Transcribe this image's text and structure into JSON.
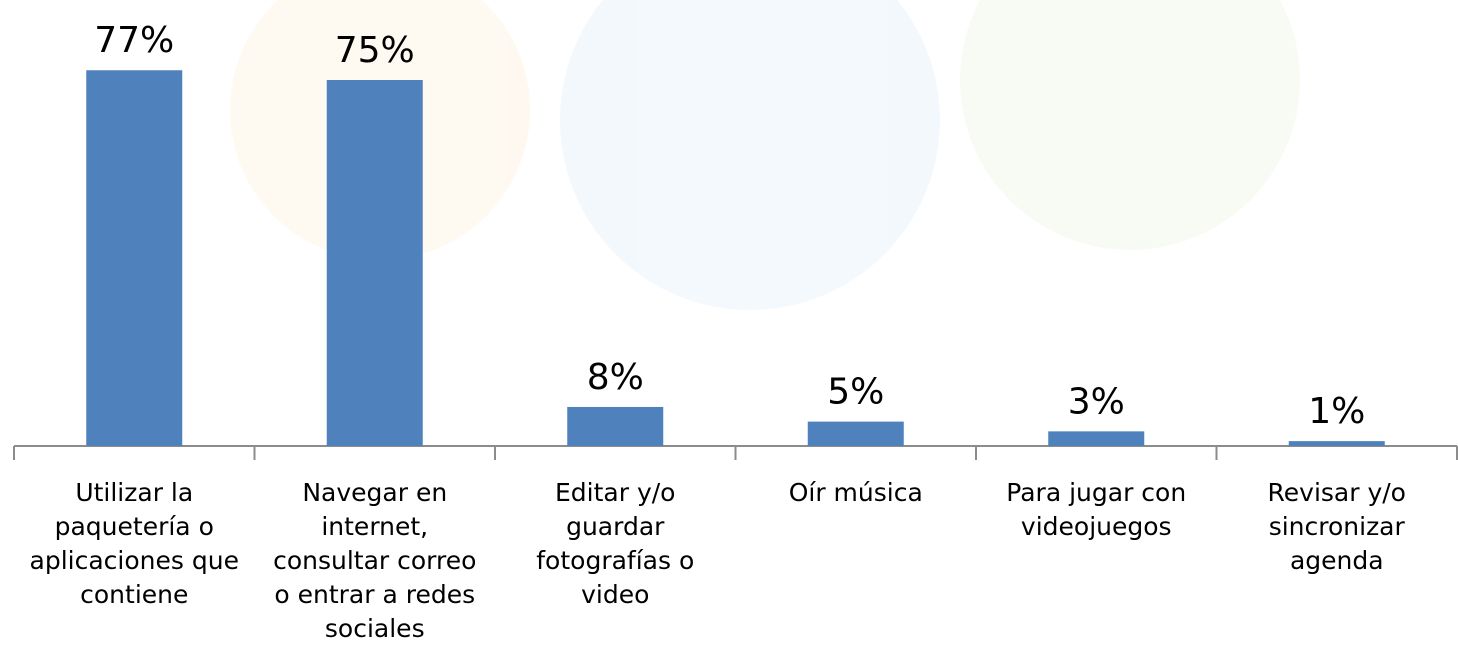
{
  "chart_data": {
    "type": "bar",
    "categories": [
      "Utilizar la paquetería o aplicaciones que contiene",
      "Navegar en internet, consultar correo o entrar a redes sociales",
      "Editar y/o guardar fotografías o video",
      "Oír música",
      "Para jugar con videojuegos",
      "Revisar y/o sincronizar agenda"
    ],
    "values": [
      77,
      75,
      8,
      5,
      3,
      1
    ],
    "value_labels": [
      "77%",
      "75%",
      "8%",
      "5%",
      "3%",
      "1%"
    ],
    "color": "#4f81bd"
  }
}
